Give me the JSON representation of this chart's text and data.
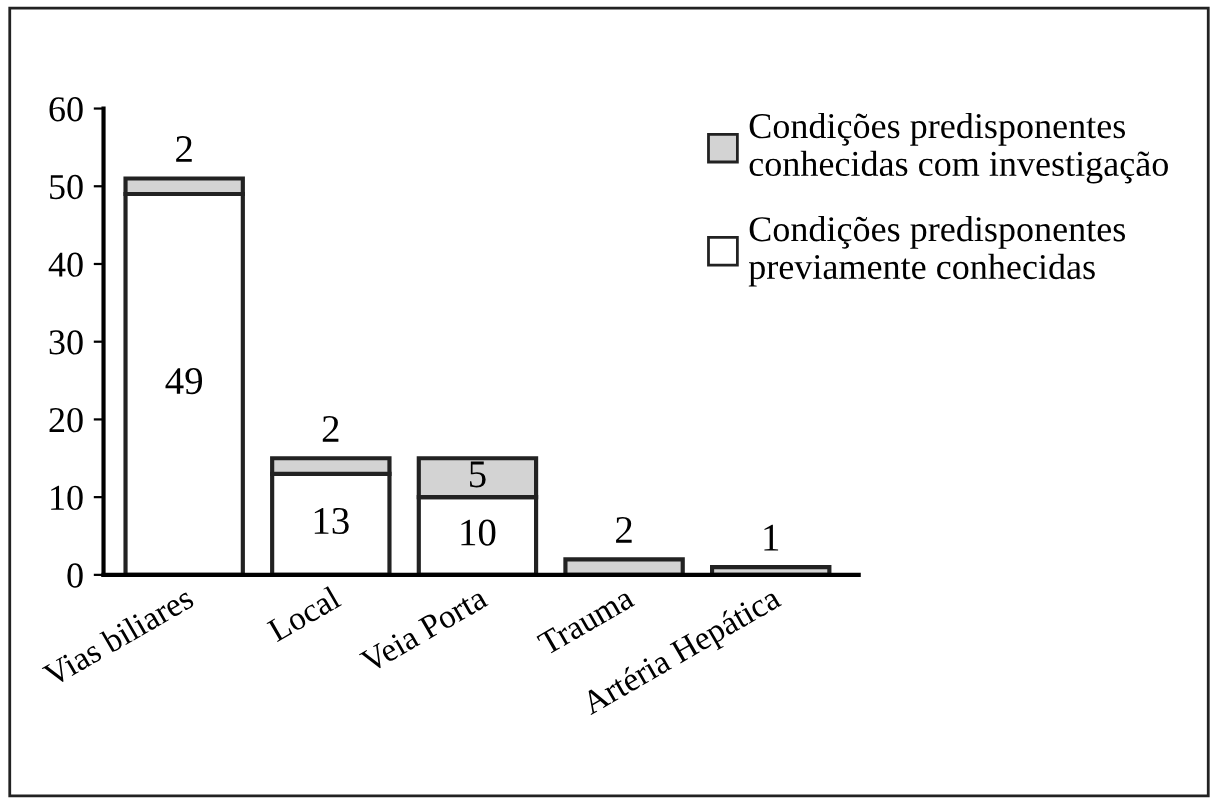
{
  "chart_data": {
    "type": "bar",
    "stacked": true,
    "categories": [
      "Vias biliares",
      "Local",
      "Veia Porta",
      "Trauma",
      "Artéria Hepática"
    ],
    "series": [
      {
        "name": "Condições predisponentes\npreviamente conhecidas",
        "color": "#ffffff",
        "values": [
          49,
          13,
          10,
          0,
          0
        ],
        "value_labels": [
          "49",
          "13",
          "10",
          null,
          null
        ]
      },
      {
        "name": "Condições predisponentes\nconhecidas com investigação",
        "color": "#d3d3d3",
        "values": [
          2,
          2,
          5,
          2,
          1
        ],
        "value_labels": [
          "2",
          "2",
          "5",
          "2",
          "1"
        ]
      }
    ],
    "ylim": [
      0,
      60
    ],
    "yticks": [
      0,
      10,
      20,
      30,
      40,
      50,
      60
    ],
    "grid": false,
    "legend": "top right"
  }
}
